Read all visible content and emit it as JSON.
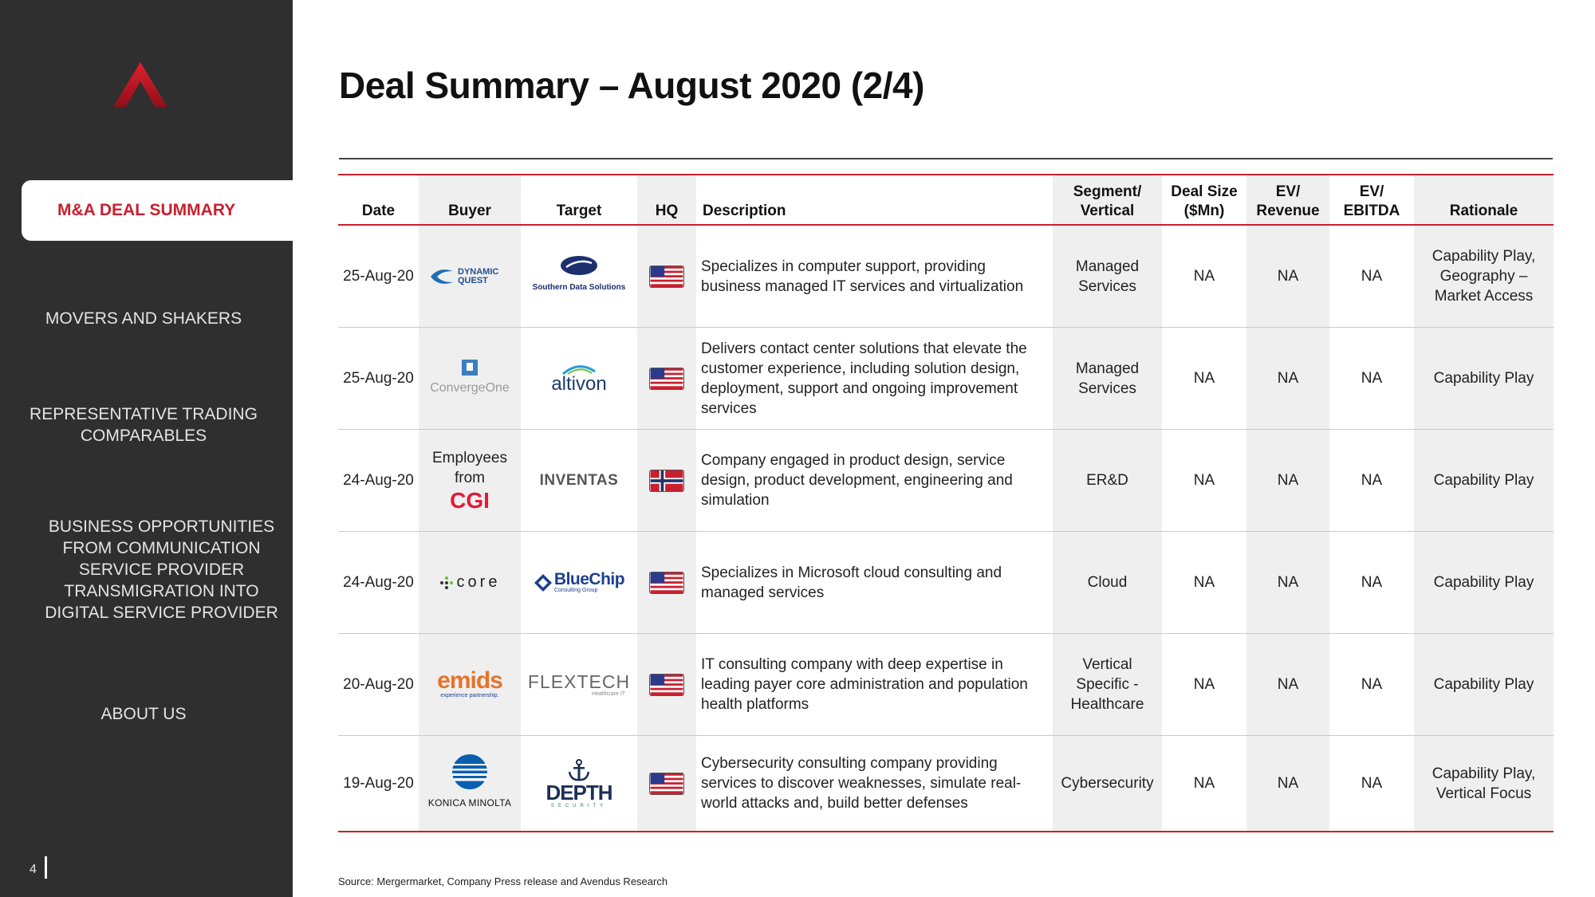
{
  "sidebar": {
    "nav_active": "M&A DEAL SUMMARY",
    "nav_movers": "MOVERS AND SHAKERS",
    "nav_comps": "REPRESENTATIVE TRADING COMPARABLES",
    "nav_biz": "BUSINESS OPPORTUNITIES FROM COMMUNICATION SERVICE PROVIDER TRANSMIGRATION INTO DIGITAL SERVICE PROVIDER",
    "nav_about": "ABOUT US",
    "page_number": "4"
  },
  "title": "Deal Summary – August 2020 (2/4)",
  "table": {
    "headers": {
      "date": "Date",
      "buyer": "Buyer",
      "target": "Target",
      "hq": "HQ",
      "description": "Description",
      "segment": "Segment/ Vertical",
      "deal_size": "Deal Size ($Mn)",
      "ev_revenue": "EV/ Revenue",
      "ev_ebitda": "EV/ EBITDA",
      "rationale": "Rationale"
    },
    "rows": [
      {
        "date": "25-Aug-20",
        "buyer_logo": "DYNAMIC QUEST",
        "target_logo": "Southern Data Solutions",
        "hq_flag": "us-flag-icon",
        "description": "Specializes in computer support, providing business managed IT services and virtualization",
        "segment": "Managed Services",
        "deal_size": "NA",
        "ev_revenue": "NA",
        "ev_ebitda": "NA",
        "rationale": "Capability Play, Geography – Market Access"
      },
      {
        "date": "25-Aug-20",
        "buyer_logo": "ConvergeOne",
        "target_logo": "altivon",
        "hq_flag": "us-flag-icon",
        "description": "Delivers contact center solutions that elevate the customer experience, including solution design, deployment, support and ongoing improvement services",
        "segment": "Managed Services",
        "deal_size": "NA",
        "ev_revenue": "NA",
        "ev_ebitda": "NA",
        "rationale": "Capability Play"
      },
      {
        "date": "24-Aug-20",
        "buyer_text": "Employees from",
        "buyer_logo": "CGI",
        "target_logo": "INVENTAS",
        "hq_flag": "norway-flag-icon",
        "description": "Company engaged in product design, service design, product development, engineering and  simulation",
        "segment": "ER&D",
        "deal_size": "NA",
        "ev_revenue": "NA",
        "ev_ebitda": "NA",
        "rationale": "Capability Play"
      },
      {
        "date": "24-Aug-20",
        "buyer_logo": "core",
        "target_logo": "BlueChip",
        "target_logo_sub": "Consulting Group",
        "hq_flag": "us-flag-icon",
        "description": "Specializes in Microsoft cloud consulting and managed services",
        "segment": "Cloud",
        "deal_size": "NA",
        "ev_revenue": "NA",
        "ev_ebitda": "NA",
        "rationale": "Capability Play"
      },
      {
        "date": "20-Aug-20",
        "buyer_logo": "emids",
        "buyer_logo_sub": "experience partnership.",
        "target_logo": "FLEXTECH",
        "target_logo_sub": "Healthcare IT",
        "hq_flag": "us-flag-icon",
        "description": "IT consulting company with deep expertise in leading payer core administration and population health platforms",
        "segment": "Vertical Specific - Healthcare",
        "deal_size": "NA",
        "ev_revenue": "NA",
        "ev_ebitda": "NA",
        "rationale": "Capability Play"
      },
      {
        "date": "19-Aug-20",
        "buyer_logo": "KONICA MINOLTA",
        "target_logo": "DEPTH",
        "target_logo_sub": "SECURITY",
        "hq_flag": "us-flag-icon",
        "description": "Cybersecurity consulting company providing services to discover weaknesses, simulate real-world attacks and, build better defenses",
        "segment": "Cybersecurity",
        "deal_size": "NA",
        "ev_revenue": "NA",
        "ev_ebitda": "NA",
        "rationale": "Capability Play, Vertical Focus"
      }
    ]
  },
  "source": "Source: Mergermarket, Company Press release and Avendus Research",
  "colors": {
    "accent": "#c8202f",
    "sidebar": "#2f2f2f",
    "shade": "#efefef"
  }
}
